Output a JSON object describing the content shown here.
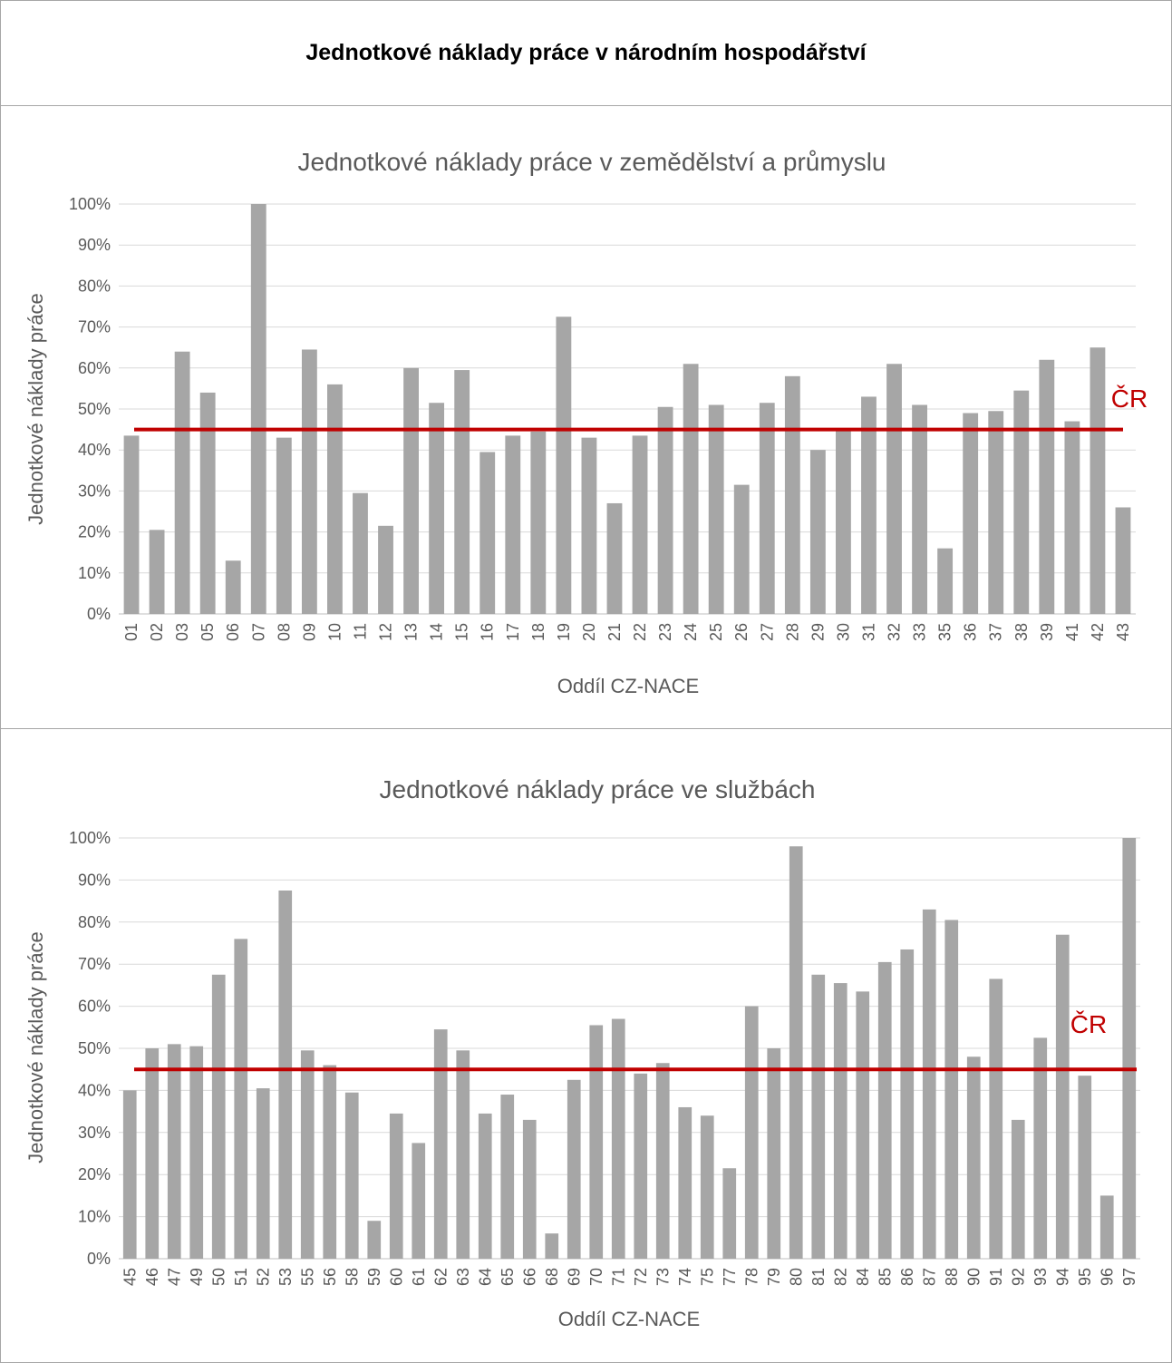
{
  "page_title": "Jednotkové náklady práce v národním hospodářství",
  "colors": {
    "bar": "#a6a6a6",
    "reference_line": "#c00000",
    "grid": "#d9d9d9",
    "text": "#595959"
  },
  "chart_data": [
    {
      "type": "bar",
      "title": "Jednotkové náklady práce v zemědělství a průmyslu",
      "xlabel": "Oddíl CZ-NACE",
      "ylabel": "Jednotkové náklady práce",
      "ylim": [
        0,
        100
      ],
      "y_ticks": [
        "0%",
        "10%",
        "20%",
        "30%",
        "40%",
        "50%",
        "60%",
        "70%",
        "80%",
        "90%",
        "100%"
      ],
      "grid": true,
      "categories": [
        "01",
        "02",
        "03",
        "05",
        "06",
        "07",
        "08",
        "09",
        "10",
        "11",
        "12",
        "13",
        "14",
        "15",
        "16",
        "17",
        "18",
        "19",
        "20",
        "21",
        "22",
        "23",
        "24",
        "25",
        "26",
        "27",
        "28",
        "29",
        "30",
        "31",
        "32",
        "33",
        "35",
        "36",
        "37",
        "38",
        "39",
        "41",
        "42",
        "43"
      ],
      "values": [
        43.5,
        20.5,
        64,
        54,
        13,
        100,
        43,
        64.5,
        56,
        29.5,
        21.5,
        60,
        51.5,
        59.5,
        39.5,
        43.5,
        44.5,
        72.5,
        43,
        27,
        43.5,
        50.5,
        61,
        51,
        31.5,
        51.5,
        58,
        40,
        45,
        53,
        61,
        51,
        16,
        49,
        49.5,
        54.5,
        62,
        47,
        65,
        26
      ],
      "reference_line": {
        "label": "ČR",
        "value": 45
      }
    },
    {
      "type": "bar",
      "title": "Jednotkové náklady práce ve službách",
      "xlabel": "Oddíl CZ-NACE",
      "ylabel": "Jednotkové náklady práce",
      "ylim": [
        0,
        100
      ],
      "y_ticks": [
        "0%",
        "10%",
        "20%",
        "30%",
        "40%",
        "50%",
        "60%",
        "70%",
        "80%",
        "90%",
        "100%"
      ],
      "grid": true,
      "categories": [
        "45",
        "46",
        "47",
        "49",
        "50",
        "51",
        "52",
        "53",
        "55",
        "56",
        "58",
        "59",
        "60",
        "61",
        "62",
        "63",
        "64",
        "65",
        "66",
        "68",
        "69",
        "70",
        "71",
        "72",
        "73",
        "74",
        "75",
        "77",
        "78",
        "79",
        "80",
        "81",
        "82",
        "84",
        "85",
        "86",
        "87",
        "88",
        "90",
        "91",
        "92",
        "93",
        "94",
        "95",
        "96",
        "97"
      ],
      "values": [
        40,
        50,
        51,
        50.5,
        67.5,
        76,
        40.5,
        87.5,
        49.5,
        46,
        39.5,
        9,
        34.5,
        27.5,
        54.5,
        49.5,
        34.5,
        39,
        33,
        6,
        42.5,
        55.5,
        57,
        44,
        46.5,
        36,
        34,
        21.5,
        60,
        50,
        98,
        67.5,
        65.5,
        63.5,
        70.5,
        73.5,
        83,
        80.5,
        48,
        66.5,
        33,
        52.5,
        77,
        43.5,
        15,
        100
      ],
      "reference_line": {
        "label": "ČR",
        "value": 45
      }
    }
  ]
}
